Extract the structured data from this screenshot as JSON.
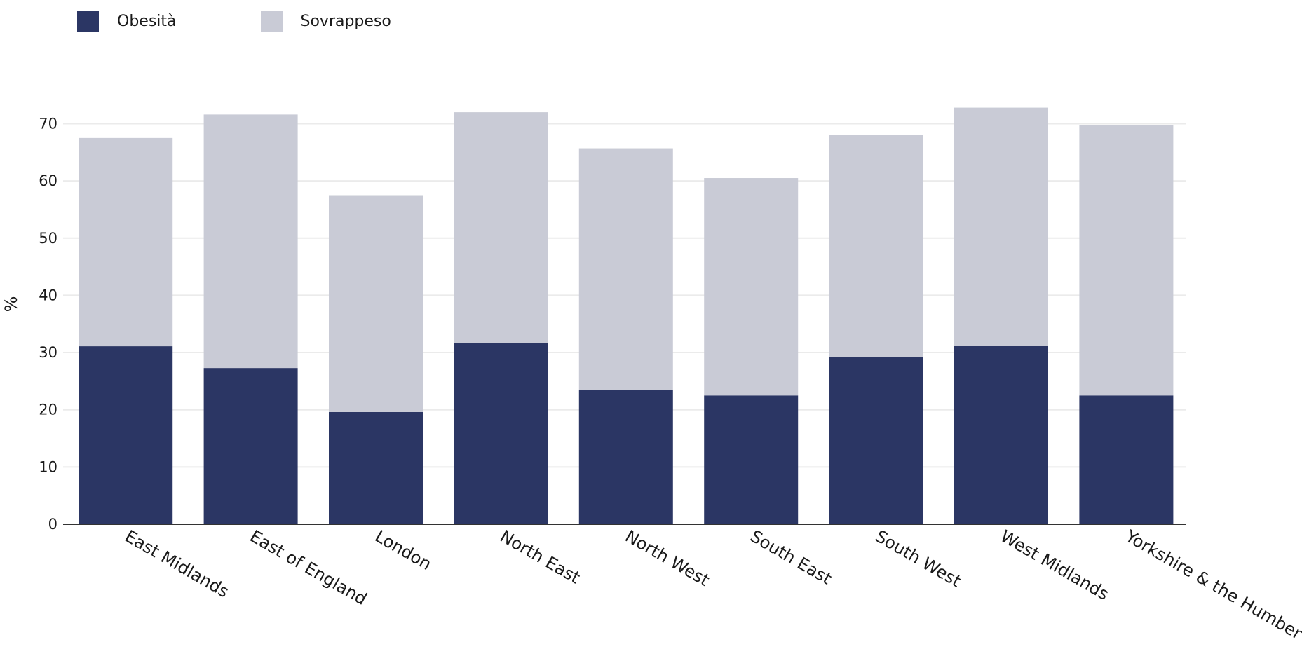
{
  "chart_data": {
    "type": "bar",
    "stacked": true,
    "categories": [
      "East Midlands",
      "East of England",
      "London",
      "North East",
      "North West",
      "South East",
      "South West",
      "West Midlands",
      "Yorkshire & the Humber"
    ],
    "series": [
      {
        "name": "Obesità",
        "color": "#2b3664",
        "values": [
          31.1,
          27.3,
          19.6,
          31.6,
          23.4,
          22.5,
          29.2,
          31.2,
          22.5
        ]
      },
      {
        "name": "Sovrappeso",
        "color": "#c9cbd6",
        "values": [
          36.4,
          44.3,
          37.9,
          40.4,
          42.3,
          38.0,
          38.8,
          41.6,
          47.2
        ]
      }
    ],
    "ylabel": "%",
    "ylim": [
      0,
      80
    ],
    "yticks": [
      0,
      10,
      20,
      30,
      40,
      50,
      60,
      70
    ],
    "grid": true,
    "legend_position": "top-left"
  }
}
